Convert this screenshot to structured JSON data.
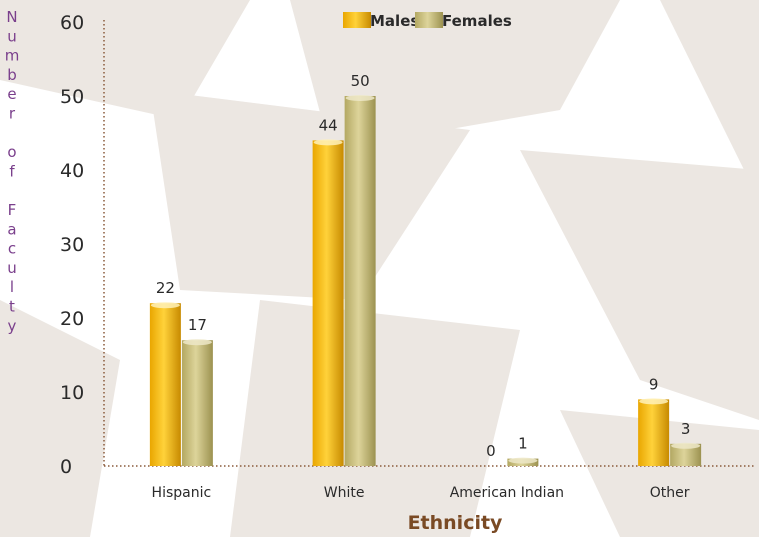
{
  "colors": {
    "background": "#ffffff",
    "background_shape": "#ece7e2",
    "males": "#f2b400",
    "females": "#c9bf78",
    "ylabel": "#7a3f8c",
    "xlabel": "#7a4a24",
    "axis": "#8a5a3a"
  },
  "chart_data": {
    "type": "bar",
    "categories": [
      "Hispanic",
      "White",
      "American Indian",
      "Other"
    ],
    "series": [
      {
        "name": "Males",
        "values": [
          22,
          44,
          0,
          9
        ]
      },
      {
        "name": "Females",
        "values": [
          17,
          50,
          1,
          3
        ]
      }
    ],
    "data_labels": [
      [
        "22",
        "44",
        "0",
        "9"
      ],
      [
        "17",
        "50",
        "1",
        "3"
      ]
    ],
    "xlabel": "Ethnicity",
    "ylabel": "Number of Faculty",
    "ylim": [
      0,
      60
    ],
    "yticks": [
      0,
      10,
      20,
      30,
      40,
      50,
      60
    ],
    "legend": "top-center",
    "grid": false
  }
}
